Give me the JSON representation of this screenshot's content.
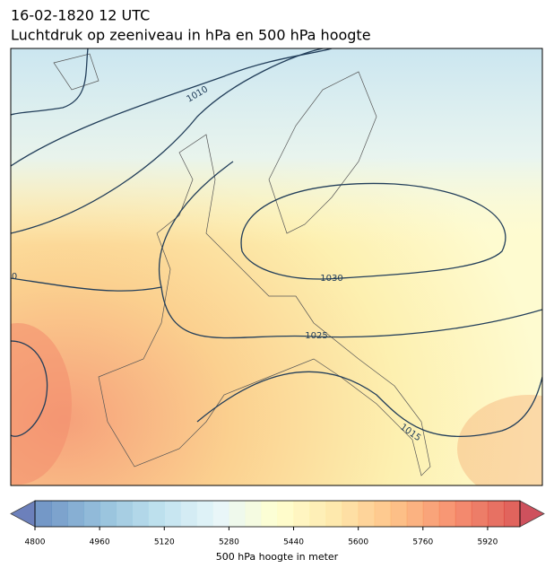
{
  "header": {
    "line1": "16-02-1820 12 UTC",
    "line2": "Luchtdruk op zeeniveau in hPa en 500 hPa hoogte"
  },
  "contour_labels": [
    "1010",
    "1030",
    "1025",
    "1015",
    "0"
  ],
  "colorbar": {
    "label": "500 hPa hoogte in meter",
    "min": 4800,
    "max": 6000,
    "step": 40,
    "ticks": [
      4800,
      4960,
      5120,
      5280,
      5440,
      5600,
      5760,
      5920
    ]
  }
}
